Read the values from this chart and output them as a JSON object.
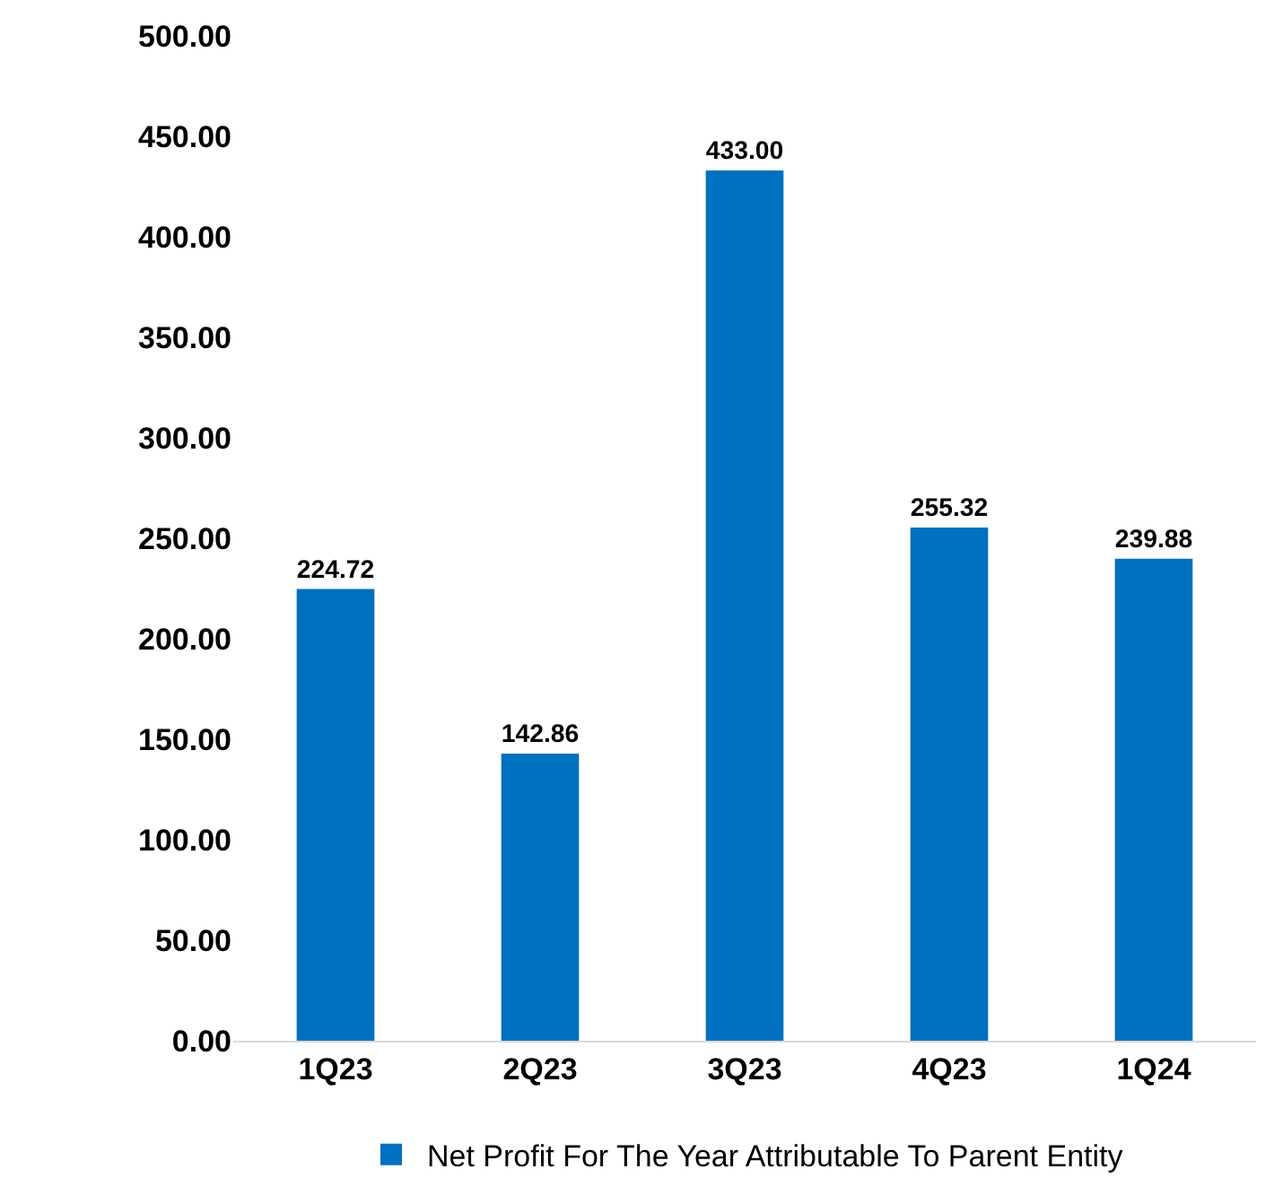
{
  "chart_data": {
    "type": "bar",
    "categories": [
      "1Q23",
      "2Q23",
      "3Q23",
      "4Q23",
      "1Q24"
    ],
    "series": [
      {
        "name": "Net Profit For The Year Attributable To Parent Entity",
        "color": "#0070c0",
        "values": [
          224.72,
          142.86,
          433.0,
          255.32,
          239.88
        ],
        "value_labels": [
          "224.72",
          "142.86",
          "433.00",
          "255.32",
          "239.88"
        ]
      }
    ],
    "ylim": [
      0,
      500
    ],
    "yticks": [
      {
        "value": 0,
        "label": "0.00"
      },
      {
        "value": 50,
        "label": "50.00"
      },
      {
        "value": 100,
        "label": "100.00"
      },
      {
        "value": 150,
        "label": "150.00"
      },
      {
        "value": 200,
        "label": "200.00"
      },
      {
        "value": 250,
        "label": "250.00"
      },
      {
        "value": 300,
        "label": "300.00"
      },
      {
        "value": 350,
        "label": "350.00"
      },
      {
        "value": 400,
        "label": "400.00"
      },
      {
        "value": 450,
        "label": "450.00"
      },
      {
        "value": 500,
        "label": "500.00"
      }
    ],
    "grid": false,
    "legend": "bottom"
  }
}
